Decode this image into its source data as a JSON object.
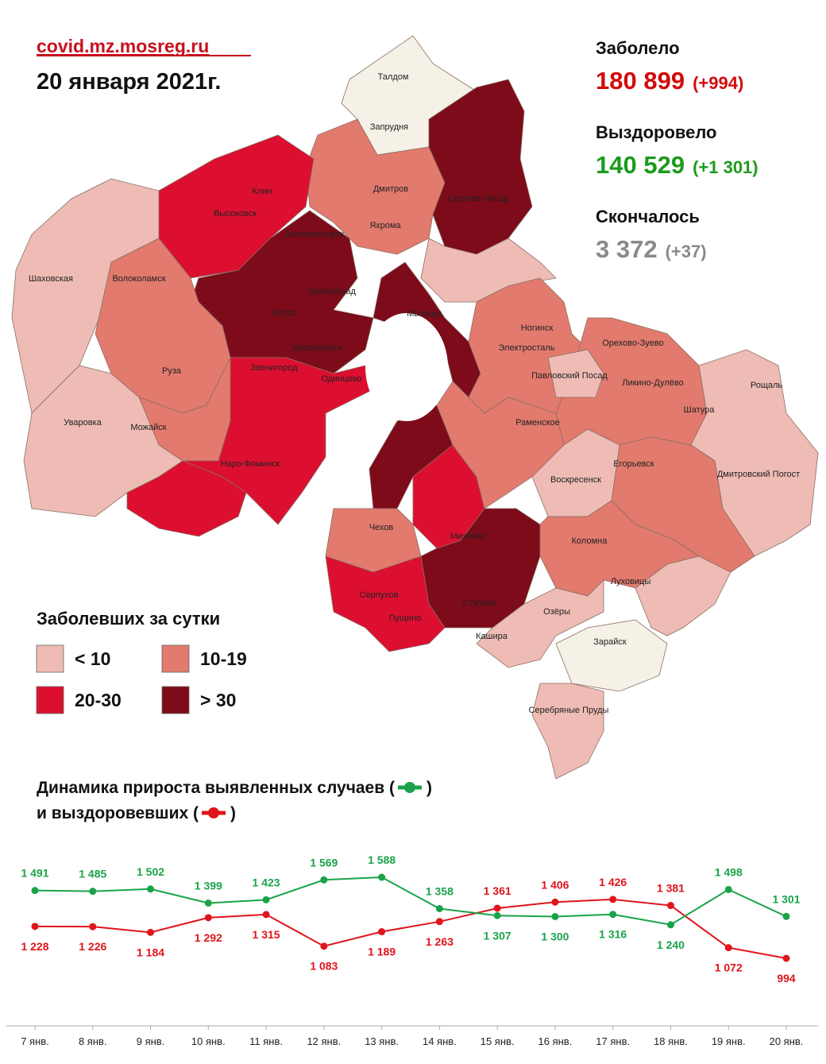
{
  "header": {
    "source": "covid.mz.mosreg.ru",
    "date": "20 января 2021г."
  },
  "stats": [
    {
      "label": "Заболело",
      "value": "180 899",
      "delta": "(+994)",
      "color": "#d40a0a"
    },
    {
      "label": "Выздоровело",
      "value": "140 529",
      "delta": "(+1 301)",
      "color": "#1e9a1e"
    },
    {
      "label": "Скончалось",
      "value": "3 372",
      "delta": "(+37)",
      "color": "#8a8a8a"
    }
  ],
  "legend": {
    "title": "Заболевших за сутки",
    "items": [
      {
        "label": "< 10",
        "color": "#eebcb4"
      },
      {
        "label": "10-19",
        "color": "#e27a6e"
      },
      {
        "label": "20-30",
        "color": "#dc0f30"
      },
      {
        "label": "> 30",
        "color": "#7d0b19"
      }
    ]
  },
  "map_labels": [
    "Талдом",
    "Запрудня",
    "Дмитров",
    "Яхрома",
    "Сергиев Посад",
    "Клин",
    "Высоковск",
    "Солнечногорск",
    "Шаховская",
    "Волоколамск",
    "Зеленоград",
    "Истра",
    "Мытищи",
    "Ногинск",
    "Электросталь",
    "Орехово-Зуево",
    "Павловский Посад",
    "Красногорск",
    "Руза",
    "Звенигород",
    "Одинцово",
    "Ликино-Дулёво",
    "Рощаль",
    "Шатура",
    "Уваровка",
    "Можайск",
    "Раменское",
    "Наро-Фоминск",
    "Егорьевск",
    "Воскресенск",
    "Дмитровский Погост",
    "Чехов",
    "Михнево",
    "Коломна",
    "Луховицы",
    "Серпухов",
    "Пущино",
    "Ступино",
    "Озёры",
    "Кашира",
    "Зарайск",
    "Серебряные Пруды"
  ],
  "chart_data": {
    "type": "line",
    "title_lines": [
      [
        "Динамика прироста выявленных случаев (",
        ")"
      ],
      [
        "и выздоровевших (",
        ")"
      ]
    ],
    "categories": [
      "7 янв.",
      "8 янв.",
      "9 янв.",
      "10 янв.",
      "11 янв.",
      "12 янв.",
      "13 янв.",
      "14 янв.",
      "15 янв.",
      "16 янв.",
      "17 янв.",
      "18 янв.",
      "19 янв.",
      "20 янв."
    ],
    "series": [
      {
        "color": "#e0141c",
        "values": [
          1228,
          1226,
          1184,
          1292,
          1315,
          1083,
          1189,
          1263,
          1361,
          1406,
          1426,
          1381,
          1072,
          994
        ],
        "value_labels": [
          "1 228",
          "1 226",
          "1 184",
          "1 292",
          "1 315",
          "1 083",
          "1 189",
          "1 263",
          "1 361",
          "1 406",
          "1 426",
          "1 381",
          "1 072",
          "994"
        ]
      },
      {
        "color": "#1aa34a",
        "values": [
          1491,
          1485,
          1502,
          1399,
          1423,
          1569,
          1588,
          1358,
          1307,
          1300,
          1316,
          1240,
          1498,
          1301
        ],
        "value_labels": [
          "1 491",
          "1 485",
          "1 502",
          "1 399",
          "1 423",
          "1 569",
          "1 588",
          "1 358",
          "1 307",
          "1 300",
          "1 316",
          "1 240",
          "1 498",
          "1 301"
        ]
      }
    ]
  }
}
